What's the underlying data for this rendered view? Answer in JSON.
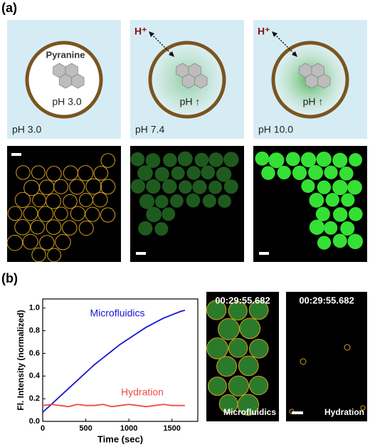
{
  "panel_a": {
    "label": "(a)",
    "diagrams": [
      {
        "inner_top": "Pyranine",
        "inner_bottom": "pH 3.0",
        "label": "pH 3.0"
      },
      {
        "ion": "H⁺",
        "inner_bottom": "pH ↑",
        "label": "pH 7.4"
      },
      {
        "ion": "H⁺",
        "inner_bottom": "pH ↑",
        "label": "pH 10.0"
      }
    ]
  },
  "panel_b": {
    "label": "(b)",
    "images": [
      {
        "timestamp": "00:29:55.682",
        "caption": "Microfluidics"
      },
      {
        "timestamp": "00:29:55.682",
        "caption": "Hydration"
      }
    ]
  },
  "chart_data": {
    "type": "line",
    "x_label": "Time (sec)",
    "y_label": "Fl. Intensity (normalized)",
    "x": [
      0,
      100,
      200,
      300,
      400,
      500,
      600,
      700,
      800,
      900,
      1000,
      1100,
      1200,
      1300,
      1400,
      1500,
      1600,
      1650
    ],
    "series": [
      {
        "name": "Microfluidics",
        "color": "#1515d6",
        "values": [
          0.08,
          0.15,
          0.22,
          0.29,
          0.36,
          0.43,
          0.5,
          0.56,
          0.62,
          0.68,
          0.73,
          0.78,
          0.83,
          0.87,
          0.91,
          0.94,
          0.97,
          0.98
        ]
      },
      {
        "name": "Hydration",
        "color": "#f04a4a",
        "values": [
          0.14,
          0.15,
          0.14,
          0.13,
          0.15,
          0.14,
          0.14,
          0.15,
          0.13,
          0.14,
          0.15,
          0.14,
          0.13,
          0.14,
          0.15,
          0.14,
          0.14,
          0.14
        ]
      }
    ],
    "xlim": [
      0,
      1800
    ],
    "ylim": [
      0,
      1.08
    ],
    "xticks": [
      0,
      500,
      1000,
      1500
    ],
    "yticks": [
      {
        "value": 0,
        "label": "0.0"
      },
      0.2,
      0.4,
      0.6,
      0.8,
      {
        "value": 1,
        "label": "1.0"
      }
    ]
  }
}
